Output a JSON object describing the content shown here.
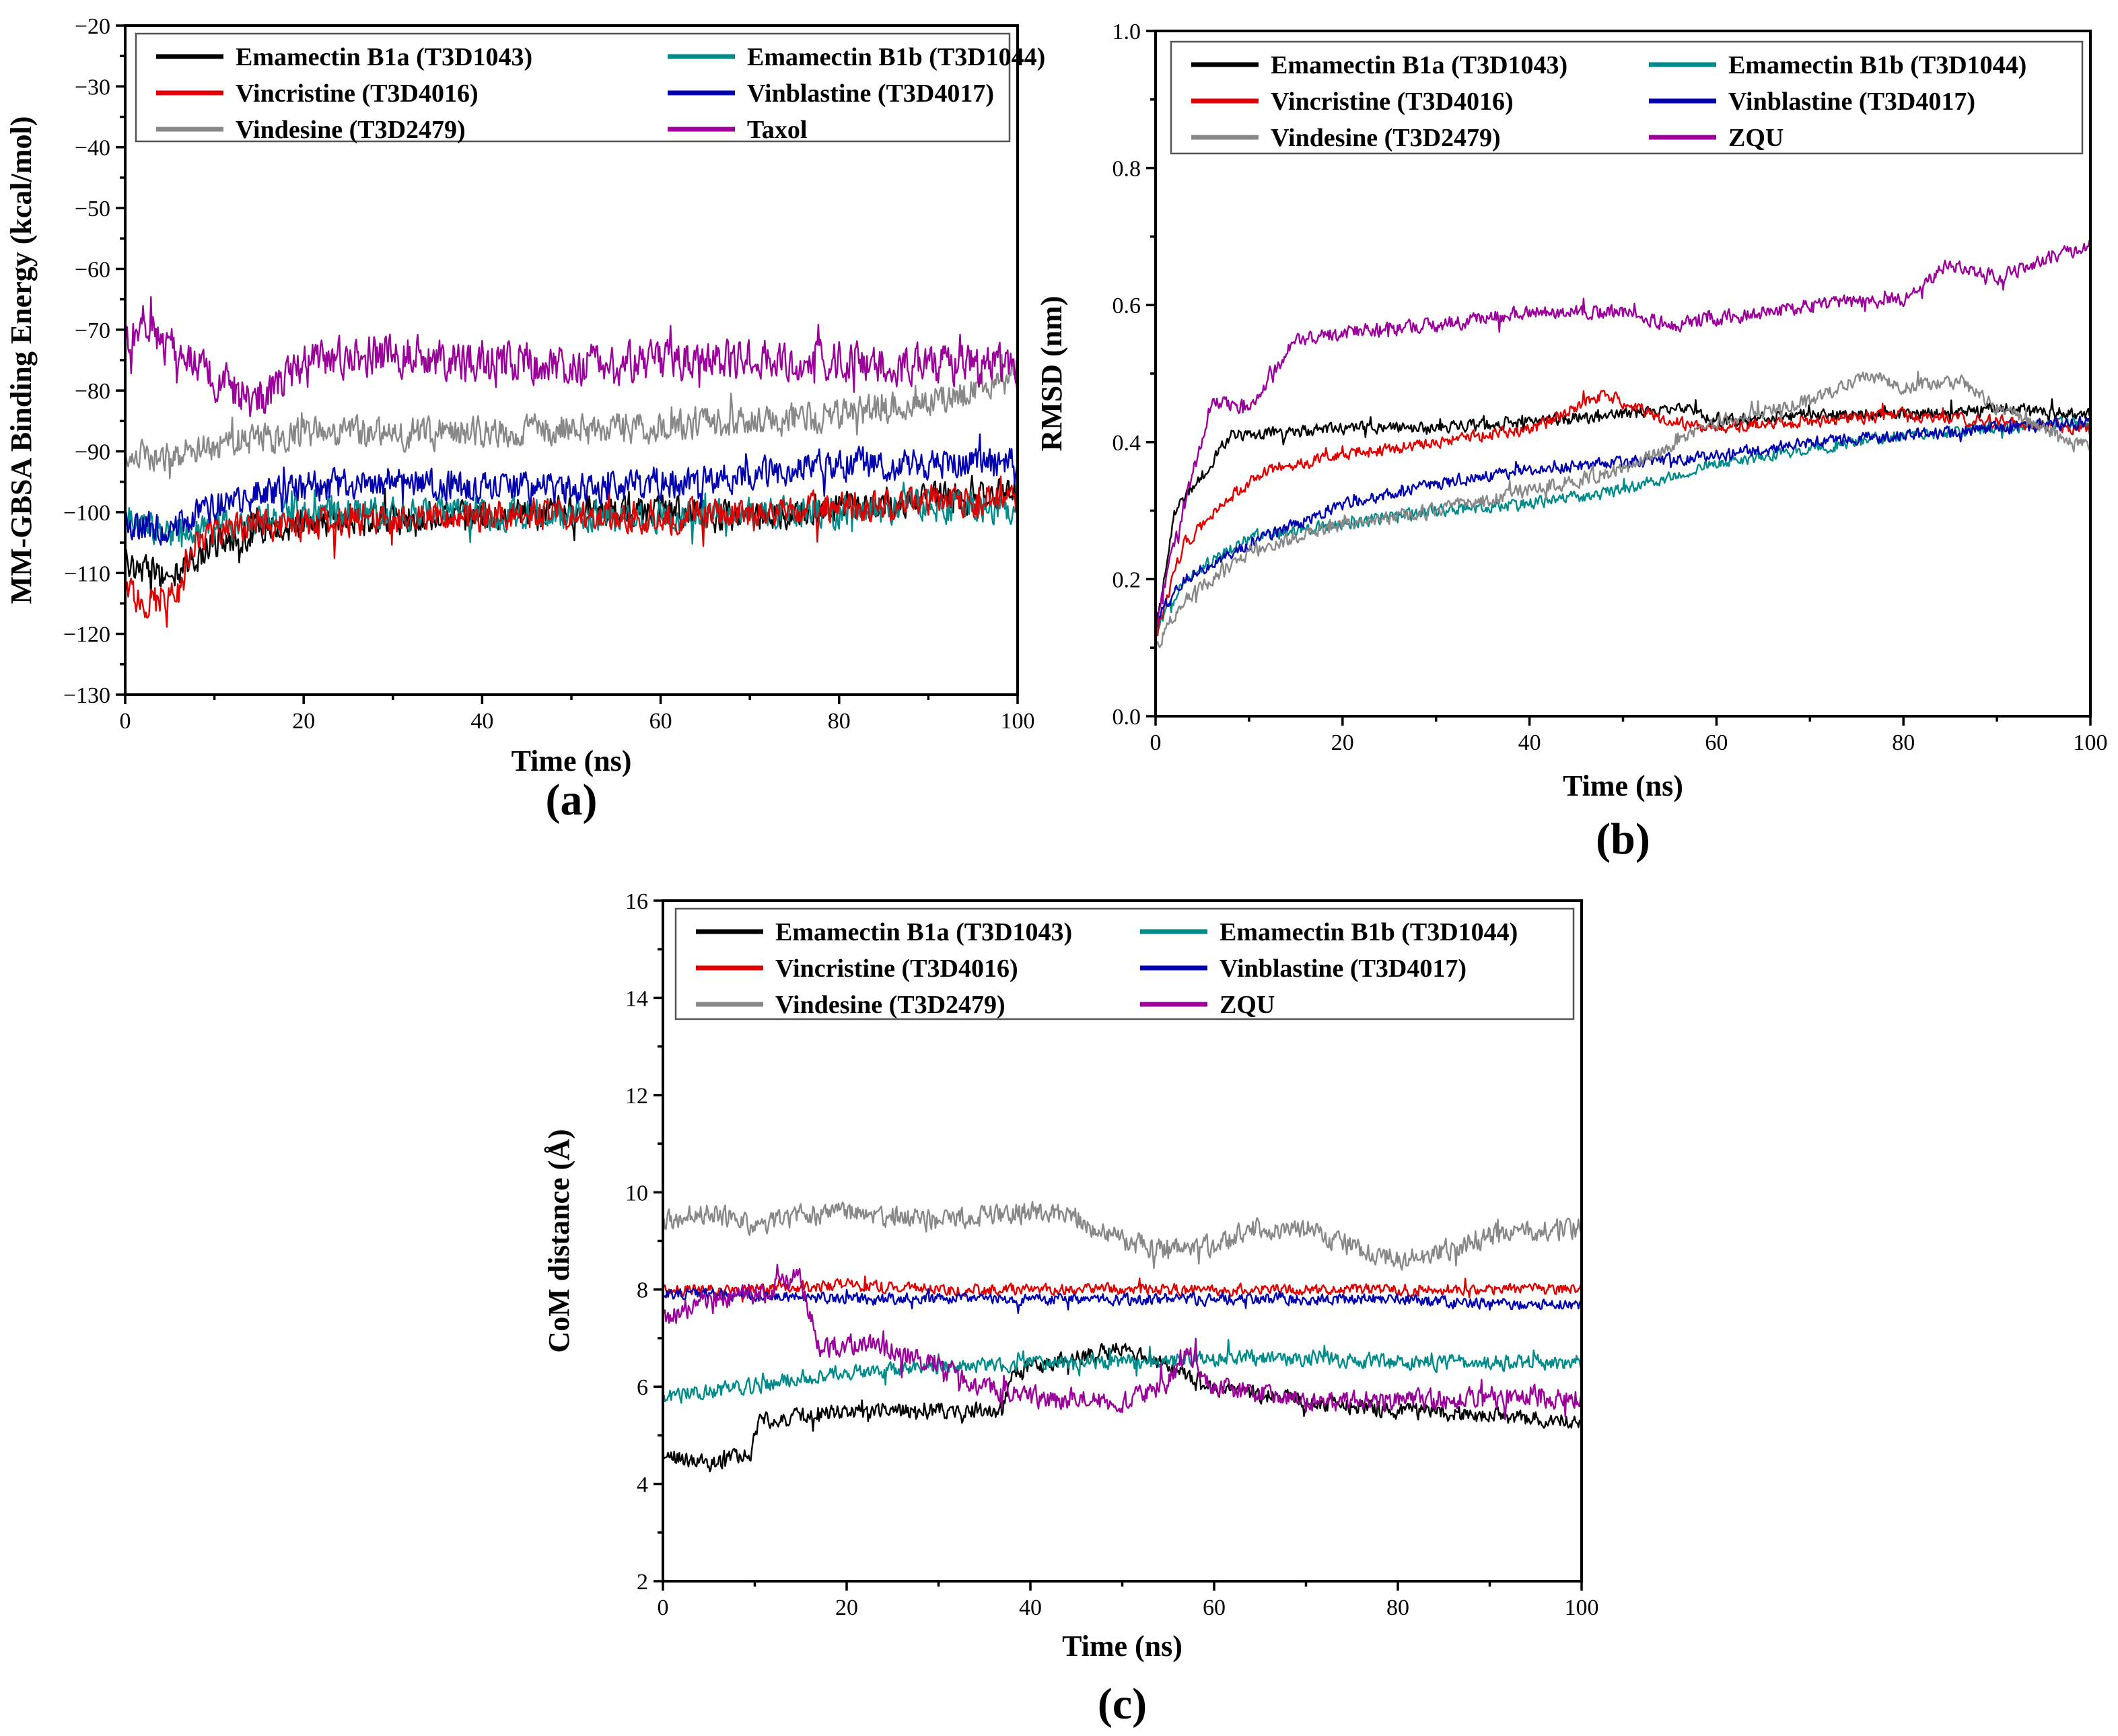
{
  "figure": {
    "title": ""
  },
  "chart_data": [
    {
      "id": "a",
      "type": "line",
      "panel_label": "(a)",
      "xlabel": "Time (ns)",
      "ylabel": "MM-GBSA Binding Energy (kcal/mol)",
      "xlim": [
        0,
        100
      ],
      "ylim": [
        -130,
        -20
      ],
      "xticks": [
        0,
        20,
        40,
        60,
        80,
        100
      ],
      "yticks": [
        -130,
        -120,
        -110,
        -100,
        -90,
        -80,
        -70,
        -60,
        -50,
        -40,
        -30,
        -20
      ],
      "xtick_labels": [
        "0",
        "20",
        "40",
        "60",
        "80",
        "100"
      ],
      "ytick_labels": [
        "−130",
        "−120",
        "−110",
        "−100",
        "−90",
        "−80",
        "−70",
        "−60",
        "−50",
        "−40",
        "−30",
        "−20"
      ],
      "legend_position": "top",
      "series": [
        {
          "name": "Emamectin B1a (T3D1043)",
          "color": "#000000",
          "x": [
            0,
            5,
            10,
            15,
            20,
            30,
            40,
            50,
            60,
            70,
            80,
            90,
            100
          ],
          "y": [
            -108,
            -111,
            -105,
            -103,
            -102,
            -101,
            -101,
            -100,
            -100,
            -101,
            -99,
            -98,
            -97
          ],
          "noise": 3.5
        },
        {
          "name": "Emamectin B1b (T3D1044)",
          "color": "#008b8b",
          "x": [
            0,
            5,
            10,
            15,
            20,
            30,
            40,
            50,
            60,
            70,
            80,
            90,
            100
          ],
          "y": [
            -100,
            -104,
            -103,
            -101,
            -100,
            -100,
            -100,
            -101,
            -101,
            -100,
            -100,
            -99,
            -99
          ],
          "noise": 3.5
        },
        {
          "name": "Vincristine (T3D4016)",
          "color": "#e00000",
          "x": [
            0,
            3,
            6,
            8,
            10,
            15,
            20,
            30,
            40,
            50,
            60,
            70,
            80,
            90,
            100
          ],
          "y": [
            -113,
            -115,
            -113,
            -105,
            -103,
            -102,
            -102,
            -101,
            -101,
            -100,
            -101,
            -100,
            -99,
            -98,
            -98
          ],
          "noise": 3.5
        },
        {
          "name": "Vinblastine (T3D4017)",
          "color": "#0000b0",
          "x": [
            0,
            5,
            10,
            15,
            20,
            30,
            40,
            50,
            60,
            70,
            80,
            90,
            100
          ],
          "y": [
            -102,
            -103,
            -99,
            -97,
            -96,
            -95,
            -96,
            -96,
            -95,
            -94,
            -92,
            -92,
            -92
          ],
          "noise": 3.5
        },
        {
          "name": "Vindesine (T3D2479)",
          "color": "#888888",
          "x": [
            0,
            5,
            10,
            15,
            20,
            30,
            40,
            50,
            60,
            70,
            80,
            90,
            100
          ],
          "y": [
            -90,
            -91,
            -89,
            -88,
            -87,
            -87,
            -87,
            -86,
            -86,
            -85,
            -84,
            -82,
            -78
          ],
          "noise": 3.5
        },
        {
          "name": "Taxol",
          "color": "#9b009b",
          "x": [
            0,
            2,
            5,
            10,
            15,
            20,
            30,
            40,
            50,
            60,
            70,
            80,
            90,
            100
          ],
          "y": [
            -72,
            -68,
            -73,
            -78,
            -82,
            -75,
            -74,
            -75,
            -76,
            -75,
            -75,
            -75,
            -76,
            -76
          ],
          "noise": 4.5
        }
      ]
    },
    {
      "id": "b",
      "type": "line",
      "panel_label": "(b)",
      "xlabel": "Time (ns)",
      "ylabel": "RMSD (nm)",
      "xlim": [
        0,
        100
      ],
      "ylim": [
        0.0,
        1.0
      ],
      "xticks": [
        0,
        20,
        40,
        60,
        80,
        100
      ],
      "yticks": [
        0.0,
        0.2,
        0.4,
        0.6,
        0.8,
        1.0
      ],
      "xtick_labels": [
        "0",
        "20",
        "40",
        "60",
        "80",
        "100"
      ],
      "ytick_labels": [
        "0.0",
        "0.2",
        "0.4",
        "0.6",
        "0.8",
        "1.0"
      ],
      "legend_position": "top",
      "series": [
        {
          "name": "Emamectin B1a (T3D1043)",
          "color": "#000000",
          "x": [
            0,
            2,
            5,
            8,
            10,
            20,
            30,
            40,
            50,
            57,
            60,
            70,
            80,
            90,
            100
          ],
          "y": [
            0.12,
            0.3,
            0.35,
            0.41,
            0.41,
            0.42,
            0.42,
            0.43,
            0.44,
            0.45,
            0.43,
            0.44,
            0.44,
            0.45,
            0.44
          ],
          "noise": 0.012
        },
        {
          "name": "Emamectin B1b (T3D1044)",
          "color": "#008b8b",
          "x": [
            0,
            3,
            10,
            20,
            30,
            40,
            50,
            60,
            70,
            80,
            90,
            100
          ],
          "y": [
            0.12,
            0.2,
            0.26,
            0.28,
            0.3,
            0.31,
            0.33,
            0.37,
            0.39,
            0.41,
            0.42,
            0.43
          ],
          "noise": 0.012
        },
        {
          "name": "Vincristine (T3D4016)",
          "color": "#e00000",
          "x": [
            0,
            3,
            8,
            12,
            20,
            30,
            40,
            48,
            55,
            60,
            70,
            80,
            90,
            100
          ],
          "y": [
            0.12,
            0.25,
            0.32,
            0.36,
            0.38,
            0.4,
            0.42,
            0.47,
            0.43,
            0.42,
            0.43,
            0.44,
            0.43,
            0.42
          ],
          "noise": 0.012
        },
        {
          "name": "Vinblastine (T3D4017)",
          "color": "#0000b0",
          "x": [
            0,
            3,
            10,
            20,
            30,
            40,
            50,
            60,
            70,
            80,
            90,
            100
          ],
          "y": [
            0.14,
            0.2,
            0.25,
            0.31,
            0.34,
            0.36,
            0.37,
            0.38,
            0.4,
            0.41,
            0.42,
            0.43
          ],
          "noise": 0.012
        },
        {
          "name": "Vindesine (T3D2479)",
          "color": "#888888",
          "x": [
            0,
            3,
            10,
            20,
            30,
            40,
            50,
            60,
            70,
            76,
            80,
            86,
            90,
            100
          ],
          "y": [
            0.1,
            0.17,
            0.24,
            0.28,
            0.3,
            0.33,
            0.36,
            0.43,
            0.46,
            0.5,
            0.48,
            0.49,
            0.45,
            0.39
          ],
          "noise": 0.014
        },
        {
          "name": "ZQU",
          "color": "#9b009b",
          "x": [
            0,
            3,
            6,
            10,
            15,
            20,
            30,
            40,
            50,
            55,
            60,
            70,
            80,
            85,
            90,
            100
          ],
          "y": [
            0.14,
            0.3,
            0.46,
            0.45,
            0.55,
            0.56,
            0.57,
            0.59,
            0.59,
            0.57,
            0.58,
            0.6,
            0.61,
            0.66,
            0.64,
            0.69
          ],
          "noise": 0.014
        }
      ]
    },
    {
      "id": "c",
      "type": "line",
      "panel_label": "(c)",
      "xlabel": "Time (ns)",
      "ylabel": "CoM distance (Å)",
      "xlim": [
        0,
        100
      ],
      "ylim": [
        2,
        16
      ],
      "xticks": [
        0,
        20,
        40,
        60,
        80,
        100
      ],
      "yticks": [
        2,
        4,
        6,
        8,
        10,
        12,
        14,
        16
      ],
      "xtick_labels": [
        "0",
        "20",
        "40",
        "60",
        "80",
        "100"
      ],
      "ytick_labels": [
        "2",
        "4",
        "6",
        "8",
        "10",
        "12",
        "14",
        "16"
      ],
      "legend_position": "top",
      "series": [
        {
          "name": "Emamectin B1a (T3D1043)",
          "color": "#000000",
          "x": [
            0,
            5,
            9.5,
            10.5,
            20,
            30,
            37,
            38,
            45,
            50,
            55,
            60,
            70,
            80,
            90,
            100
          ],
          "y": [
            4.6,
            4.4,
            4.6,
            5.3,
            5.5,
            5.5,
            5.5,
            6.3,
            6.6,
            6.8,
            6.4,
            6.0,
            5.7,
            5.5,
            5.4,
            5.3
          ],
          "noise": 0.22
        },
        {
          "name": "Emamectin B1b (T3D1044)",
          "color": "#008b8b",
          "x": [
            0,
            5,
            10,
            15,
            20,
            30,
            40,
            50,
            60,
            70,
            80,
            90,
            100
          ],
          "y": [
            5.8,
            5.9,
            6.0,
            6.2,
            6.3,
            6.4,
            6.5,
            6.5,
            6.6,
            6.6,
            6.5,
            6.5,
            6.5
          ],
          "noise": 0.22
        },
        {
          "name": "Vincristine (T3D4016)",
          "color": "#e00000",
          "x": [
            0,
            10,
            20,
            30,
            40,
            50,
            60,
            70,
            80,
            90,
            100
          ],
          "y": [
            8.0,
            8.0,
            8.1,
            8.0,
            8.0,
            8.0,
            8.0,
            8.0,
            8.0,
            8.0,
            8.0
          ],
          "noise": 0.16
        },
        {
          "name": "Vinblastine (T3D4017)",
          "color": "#0000b0",
          "x": [
            0,
            10,
            20,
            30,
            40,
            50,
            60,
            70,
            80,
            90,
            100
          ],
          "y": [
            7.9,
            7.9,
            7.8,
            7.8,
            7.8,
            7.8,
            7.8,
            7.8,
            7.8,
            7.7,
            7.7
          ],
          "noise": 0.16
        },
        {
          "name": "Vindesine (T3D2479)",
          "color": "#888888",
          "x": [
            0,
            5,
            10,
            15,
            20,
            30,
            40,
            45,
            50,
            55,
            60,
            65,
            70,
            75,
            80,
            85,
            90,
            100
          ],
          "y": [
            9.4,
            9.6,
            9.3,
            9.5,
            9.6,
            9.4,
            9.6,
            9.5,
            9.0,
            8.8,
            8.9,
            9.3,
            9.2,
            8.9,
            8.6,
            8.8,
            9.1,
            9.3
          ],
          "noise": 0.3
        },
        {
          "name": "ZQU",
          "color": "#9b009b",
          "x": [
            0,
            5,
            10,
            15,
            17,
            20,
            25,
            30,
            35,
            40,
            50,
            55,
            57,
            60,
            70,
            80,
            90,
            100
          ],
          "y": [
            7.4,
            7.8,
            7.9,
            8.3,
            6.8,
            6.9,
            6.8,
            6.4,
            6.0,
            5.8,
            5.7,
            6.1,
            6.7,
            6.0,
            5.7,
            5.7,
            5.8,
            5.8
          ],
          "noise": 0.3
        }
      ]
    }
  ]
}
